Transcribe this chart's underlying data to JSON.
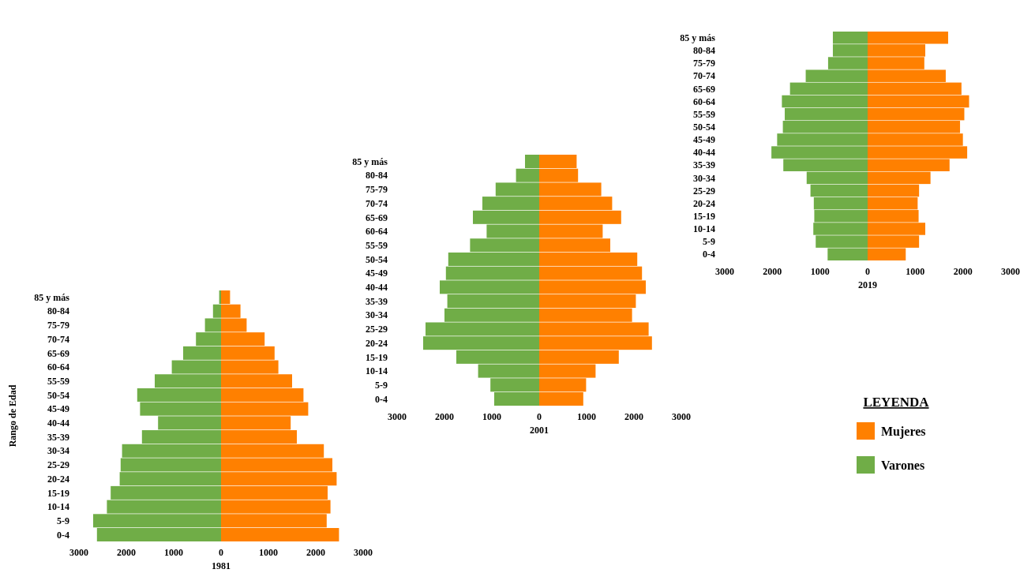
{
  "chart_data": [
    {
      "type": "bar",
      "orientation": "horizontal",
      "stacked": true,
      "xlabel": "1981",
      "ylabel": "Rango de Edad",
      "categories": [
        "85 y más",
        "80-84",
        "75-79",
        "70-74",
        "65-69",
        "60-64",
        "55-59",
        "50-54",
        "45-49",
        "40-44",
        "35-39",
        "30-34",
        "25-29",
        "20-24",
        "15-19",
        "10-14",
        "5-9",
        "0-4"
      ],
      "series": [
        {
          "color": "#ff8000",
          "values": [
            190,
            410,
            540,
            920,
            1130,
            1210,
            1500,
            1740,
            1840,
            1470,
            1600,
            2170,
            2350,
            2440,
            2250,
            2310,
            2230,
            2490
          ]
        },
        {
          "color": "#70ad47",
          "values": [
            -40,
            -170,
            -340,
            -530,
            -800,
            -1040,
            -1400,
            -1770,
            -1710,
            -1330,
            -1670,
            -2090,
            -2120,
            -2140,
            -2330,
            -2410,
            -2700,
            -2620
          ]
        }
      ],
      "xlim": [
        -3000,
        3000
      ],
      "xticks": [
        {
          "value": -3000,
          "label": "3000"
        },
        {
          "value": -2000,
          "label": "2000"
        },
        {
          "value": -1000,
          "label": "1000"
        },
        0,
        1000,
        2000,
        3000
      ]
    },
    {
      "type": "bar",
      "orientation": "horizontal",
      "stacked": true,
      "xlabel": "2001",
      "categories": [
        "85 y más",
        "80-84",
        "75-79",
        "70-74",
        "65-69",
        "60-64",
        "55-59",
        "50-54",
        "45-49",
        "40-44",
        "35-39",
        "30-34",
        "25-29",
        "20-24",
        "15-19",
        "10-14",
        "5-9",
        "0-4"
      ],
      "series": [
        {
          "color": "#ff8000",
          "values": [
            790,
            820,
            1310,
            1540,
            1730,
            1340,
            1500,
            2070,
            2170,
            2250,
            2040,
            1960,
            2310,
            2380,
            1680,
            1190,
            990,
            930
          ]
        },
        {
          "color": "#70ad47",
          "values": [
            -300,
            -490,
            -920,
            -1200,
            -1400,
            -1110,
            -1460,
            -1920,
            -1970,
            -2100,
            -1940,
            -2000,
            -2400,
            -2450,
            -1750,
            -1290,
            -1030,
            -950
          ]
        }
      ],
      "xlim": [
        -3000,
        3000
      ],
      "xticks": [
        {
          "value": -3000,
          "label": "3000"
        },
        {
          "value": -2000,
          "label": "2000"
        },
        {
          "value": -1000,
          "label": "1000"
        },
        0,
        1000,
        2000,
        3000
      ]
    },
    {
      "type": "bar",
      "orientation": "horizontal",
      "stacked": true,
      "xlabel": "2019",
      "legend": "bottom",
      "legend_title": "LEYENDA",
      "categories": [
        "85 y más",
        "80-84",
        "75-79",
        "70-74",
        "65-69",
        "60-64",
        "55-59",
        "50-54",
        "45-49",
        "40-44",
        "35-39",
        "30-34",
        "25-29",
        "20-24",
        "15-19",
        "10-14",
        "5-9",
        "0-4"
      ],
      "series": [
        {
          "name": "Mujeres",
          "color": "#ff8000",
          "values": [
            1690,
            1210,
            1190,
            1640,
            1970,
            2130,
            2030,
            1940,
            2000,
            2090,
            1720,
            1320,
            1080,
            1050,
            1070,
            1210,
            1080,
            800
          ]
        },
        {
          "name": "Varones",
          "color": "#70ad47",
          "values": [
            -730,
            -730,
            -830,
            -1300,
            -1630,
            -1800,
            -1740,
            -1780,
            -1900,
            -2020,
            -1770,
            -1280,
            -1200,
            -1130,
            -1120,
            -1140,
            -1090,
            -840
          ]
        }
      ],
      "xlim": [
        -3000,
        3000
      ],
      "xticks": [
        {
          "value": -3000,
          "label": "3000"
        },
        {
          "value": -2000,
          "label": "2000"
        },
        {
          "value": -1000,
          "label": "1000"
        },
        0,
        1000,
        2000,
        3000
      ]
    }
  ]
}
